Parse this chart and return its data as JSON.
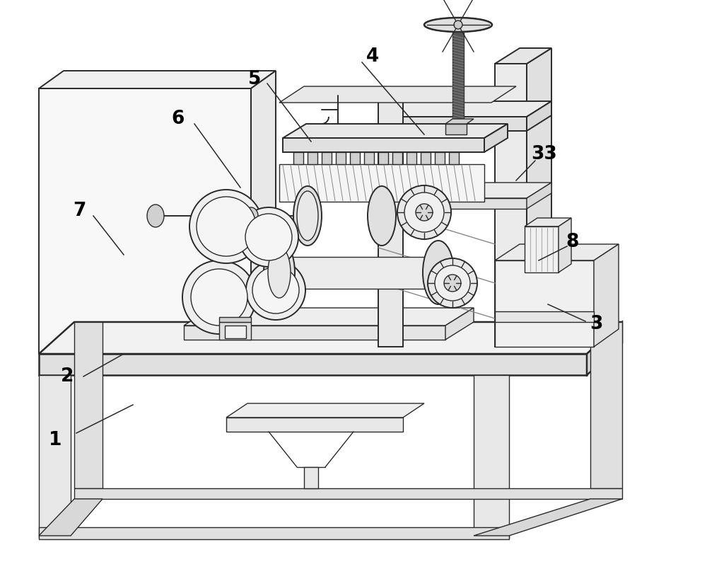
{
  "bg_color": "#ffffff",
  "line_color": "#2a2a2a",
  "lw_main": 1.8,
  "lw_thin": 1.0,
  "lw_med": 1.4,
  "label_fontsize": 19,
  "labels": [
    [
      "1",
      78,
      622
    ],
    [
      "2",
      95,
      532
    ],
    [
      "3",
      843,
      458
    ],
    [
      "4",
      527,
      80
    ],
    [
      "5",
      360,
      112
    ],
    [
      "6",
      252,
      168
    ],
    [
      "7",
      112,
      298
    ],
    [
      "8",
      810,
      342
    ],
    [
      "33",
      770,
      218
    ]
  ],
  "leaders": [
    [
      "1",
      108,
      612,
      188,
      572
    ],
    [
      "2",
      118,
      532,
      175,
      500
    ],
    [
      "3",
      828,
      454,
      775,
      430
    ],
    [
      "4",
      512,
      88,
      600,
      190
    ],
    [
      "5",
      378,
      118,
      440,
      200
    ],
    [
      "6",
      275,
      175,
      340,
      265
    ],
    [
      "7",
      132,
      305,
      175,
      360
    ],
    [
      "8",
      802,
      348,
      762,
      368
    ],
    [
      "33",
      757,
      227,
      730,
      255
    ]
  ]
}
